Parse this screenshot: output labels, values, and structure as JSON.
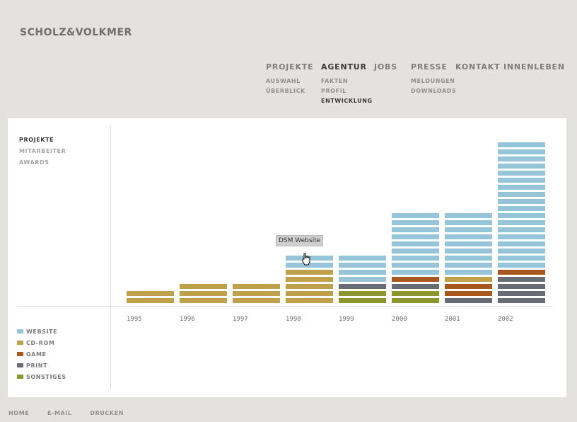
{
  "logo": "SCHOLZ&VOLKMER",
  "nav": [
    {
      "label": "PROJEKTE",
      "active": false,
      "sub": [
        {
          "label": "AUSWAHL"
        },
        {
          "label": "ÜBERBLICK"
        }
      ]
    },
    {
      "label": "AGENTUR",
      "active": true,
      "sub": [
        {
          "label": "FAKTEN"
        },
        {
          "label": "PROFIL"
        },
        {
          "label": "ENTWICKLUNG",
          "active": true
        }
      ]
    },
    {
      "label": "JOBS",
      "active": false,
      "sub": []
    },
    {
      "label": "PRESSE",
      "active": false,
      "sub": [
        {
          "label": "MELDUNGEN"
        },
        {
          "label": "DOWNLOADS"
        }
      ]
    },
    {
      "label": "KONTAKT",
      "active": false,
      "sub": []
    },
    {
      "label": "INNENLEBEN",
      "active": false,
      "sub": []
    }
  ],
  "side_menu": [
    {
      "label": "PROJEKTE",
      "active": true
    },
    {
      "label": "MITARBEITER",
      "active": false
    },
    {
      "label": "AWARDS",
      "active": false
    }
  ],
  "legend": [
    {
      "label": "WEBSITE",
      "color": "#96c4d8"
    },
    {
      "label": "CD-ROM",
      "color": "#c0a04a"
    },
    {
      "label": "GAME",
      "color": "#a8581e"
    },
    {
      "label": "PRINT",
      "color": "#686d75"
    },
    {
      "label": "SONSTIGES",
      "color": "#8c972d"
    }
  ],
  "tooltip": "DSM Website",
  "footer": [
    "HOME",
    "E-MAIL",
    "DRUCKEN"
  ],
  "chart_data": {
    "type": "bar",
    "stacked": true,
    "categories": [
      "1995",
      "1996",
      "1997",
      "1998",
      "1999",
      "2000",
      "2001",
      "2002"
    ],
    "series": [
      {
        "name": "SONSTIGES",
        "values": [
          0,
          0,
          0,
          0,
          2,
          2,
          0,
          0
        ]
      },
      {
        "name": "PRINT",
        "values": [
          0,
          0,
          0,
          0,
          1,
          1,
          1,
          4
        ]
      },
      {
        "name": "GAME",
        "values": [
          0,
          0,
          0,
          0,
          0,
          1,
          2,
          1
        ]
      },
      {
        "name": "CD-ROM",
        "values": [
          2,
          3,
          3,
          5,
          0,
          0,
          1,
          0
        ]
      },
      {
        "name": "WEBSITE",
        "values": [
          0,
          0,
          0,
          2,
          4,
          9,
          9,
          18
        ]
      }
    ],
    "legend_position": "left",
    "grid": false
  }
}
